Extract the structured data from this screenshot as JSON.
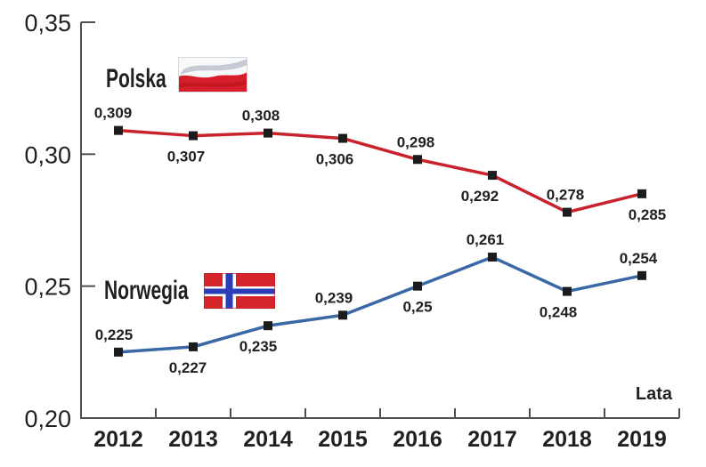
{
  "chart_data": {
    "type": "line",
    "x_categories": [
      "2012",
      "2013",
      "2014",
      "2015",
      "2016",
      "2017",
      "2018",
      "2019"
    ],
    "xlabel": "Lata",
    "ylim": [
      0.2,
      0.35
    ],
    "y_ticks": [
      {
        "value": 0.35,
        "label": "0,35"
      },
      {
        "value": 0.3,
        "label": "0,30"
      },
      {
        "value": 0.25,
        "label": "0,25"
      },
      {
        "value": 0.2,
        "label": "0,20"
      }
    ],
    "grid": false,
    "legend_position": "inside-left",
    "axis_color": "#4f4f4f",
    "text_color": "#231f20",
    "marker": {
      "shape": "square",
      "color": "#1c1c1c",
      "size": 10
    },
    "series": [
      {
        "name": "Polska",
        "color": "#c8222b",
        "flag_icon": "poland-flag-icon",
        "values": [
          0.309,
          0.307,
          0.308,
          0.306,
          0.298,
          0.292,
          0.278,
          0.285
        ],
        "point_labels": [
          {
            "text": "0,309",
            "side": "above",
            "dx": -6
          },
          {
            "text": "0,307",
            "side": "below",
            "dx": -8
          },
          {
            "text": "0,308",
            "side": "above",
            "dx": -8
          },
          {
            "text": "0,306",
            "side": "below",
            "dx": -9
          },
          {
            "text": "0,298",
            "side": "above",
            "dx": -2
          },
          {
            "text": "0,292",
            "side": "below",
            "dx": -14
          },
          {
            "text": "0,278",
            "side": "above",
            "dx": -2
          },
          {
            "text": "0,285",
            "side": "below",
            "dx": 6
          }
        ]
      },
      {
        "name": "Norwegia",
        "color": "#3a67a5",
        "flag_icon": "norway-flag-icon",
        "values": [
          0.225,
          0.227,
          0.235,
          0.239,
          0.25,
          0.261,
          0.248,
          0.254
        ],
        "point_labels": [
          {
            "text": "0,225",
            "side": "above",
            "dx": -5
          },
          {
            "text": "0,227",
            "side": "below",
            "dx": -6
          },
          {
            "text": "0,235",
            "side": "below",
            "dx": -11
          },
          {
            "text": "0,239",
            "side": "above",
            "dx": -10
          },
          {
            "text": "0,25",
            "side": "below",
            "dx": 0
          },
          {
            "text": "0,261",
            "side": "above",
            "dx": -8
          },
          {
            "text": "0,248",
            "side": "below",
            "dx": -10
          },
          {
            "text": "0,254",
            "side": "above",
            "dx": -4
          }
        ]
      }
    ]
  }
}
